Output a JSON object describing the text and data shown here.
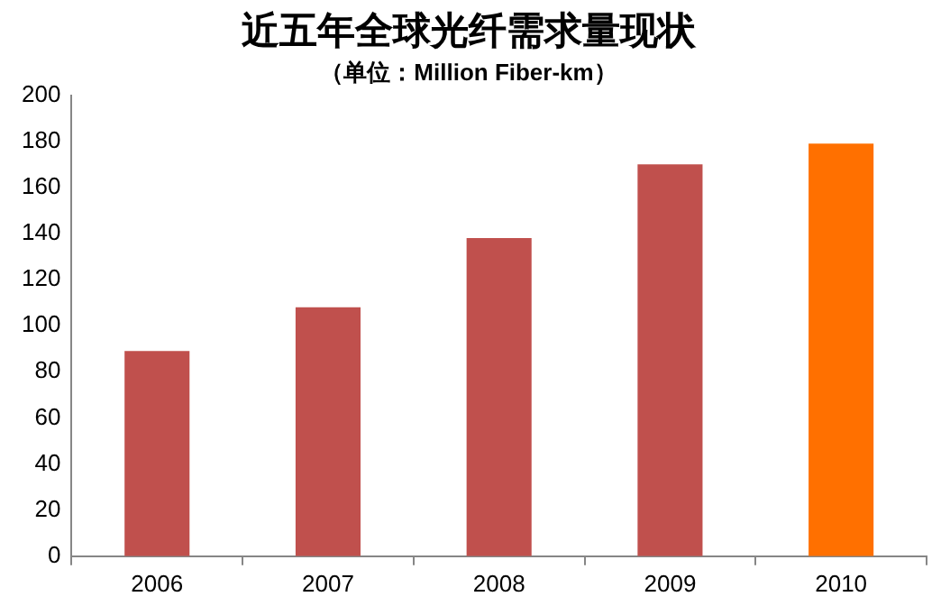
{
  "chart_data": {
    "type": "bar",
    "title": "近五年全球光纤需求量现状",
    "subtitle": "（单位：Million Fiber-km）",
    "categories": [
      "2006",
      "2007",
      "2008",
      "2009",
      "2010"
    ],
    "values": [
      89,
      108,
      138,
      170,
      179
    ],
    "colors": [
      "#c0504d",
      "#c0504d",
      "#c0504d",
      "#c0504d",
      "#ff7000"
    ],
    "ylim": [
      0,
      200
    ],
    "yticks": [
      0,
      20,
      40,
      60,
      80,
      100,
      120,
      140,
      160,
      180,
      200
    ],
    "grid": false,
    "legend": false
  }
}
